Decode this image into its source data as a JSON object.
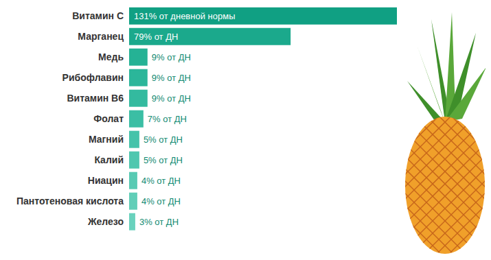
{
  "chart_data": {
    "type": "bar",
    "orientation": "horizontal",
    "categories": [
      "Витамин C",
      "Марганец",
      "Медь",
      "Рибофлавин",
      "Витамин B6",
      "Фолат",
      "Магний",
      "Калий",
      "Ниацин",
      "Пантотеновая кислота",
      "Железо"
    ],
    "values": [
      131,
      79,
      9,
      9,
      9,
      7,
      5,
      5,
      4,
      4,
      3
    ],
    "value_labels": [
      "131% от дневной нормы",
      "79% от ДН",
      "9% от ДН",
      "9% от ДН",
      "9% от ДН",
      "7% от ДН",
      "5% от ДН",
      "5% от ДН",
      "4% от ДН",
      "4% от ДН",
      "3% от ДН"
    ],
    "data_labels": true,
    "tick_labels": "y",
    "xlim": [
      0,
      131
    ],
    "grid": false,
    "colors": [
      "#10a083",
      "#1ba98c",
      "#25b295",
      "#2bb69a",
      "#33ba9f",
      "#3bbea4",
      "#45c3aa",
      "#4fc7af",
      "#58cab3",
      "#61ceb8",
      "#6ad2bd"
    ]
  }
}
